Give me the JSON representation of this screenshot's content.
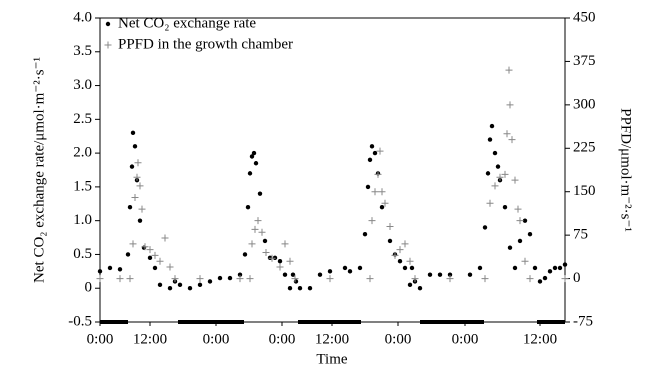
{
  "chart_data": {
    "type": "scatter",
    "xlabel": "Time",
    "ylabel": "Net CO₂ exchange rate/μmol·m⁻²·s⁻¹",
    "y2label": "PPFD/μmol·m⁻²·s⁻¹",
    "legend": "upper left",
    "xlim": [
      0,
      465
    ],
    "xticks": [
      {
        "value": 0,
        "label": "0:00"
      },
      {
        "value": 50,
        "label": "12:00"
      },
      {
        "value": 116,
        "label": "0:00"
      },
      {
        "value": 182,
        "label": "0:00"
      },
      {
        "value": 232,
        "label": "12:00"
      },
      {
        "value": 298,
        "label": "0:00"
      },
      {
        "value": 365,
        "label": "0:00"
      },
      {
        "value": 440,
        "label": "12:00"
      }
    ],
    "ylim": [
      -0.5,
      4.0
    ],
    "yticks": [
      -0.5,
      0,
      0.5,
      {
        "value": 1,
        "label": "1.0"
      },
      1.5,
      {
        "value": 2,
        "label": "2.0"
      },
      2.5,
      {
        "value": 3,
        "label": "3.0"
      },
      3.5,
      {
        "value": 4,
        "label": "4.0"
      }
    ],
    "y2lim": [
      -75,
      450
    ],
    "y2ticks": [
      -75,
      0,
      75,
      150,
      225,
      300,
      375,
      450
    ],
    "series": [
      {
        "name": "Net CO₂ exchange rate",
        "color": "#000000",
        "marker": "dot",
        "x": [
          0,
          10,
          20,
          28,
          30,
          32,
          33,
          35,
          37,
          40,
          44,
          50,
          55,
          60,
          70,
          75,
          80,
          90,
          100,
          110,
          120,
          130,
          140,
          145,
          148,
          150,
          152,
          154,
          156,
          160,
          165,
          170,
          175,
          180,
          185,
          190,
          193,
          196,
          200,
          210,
          220,
          230,
          245,
          250,
          260,
          265,
          268,
          270,
          272,
          275,
          278,
          282,
          290,
          295,
          300,
          305,
          310,
          312,
          315,
          320,
          330,
          340,
          350,
          370,
          380,
          385,
          388,
          390,
          392,
          395,
          398,
          400,
          405,
          410,
          415,
          420,
          425,
          430,
          435,
          440,
          445,
          450,
          455,
          460,
          465
        ],
        "values": [
          0.25,
          0.3,
          0.28,
          0.5,
          1.2,
          1.8,
          2.3,
          2.1,
          1.6,
          1.0,
          0.6,
          0.45,
          0.3,
          0.05,
          0.0,
          0.1,
          0.05,
          0.0,
          0.05,
          0.1,
          0.15,
          0.15,
          0.2,
          0.5,
          1.2,
          1.7,
          1.95,
          2.0,
          1.85,
          1.4,
          0.7,
          0.45,
          0.45,
          0.4,
          0.2,
          0.0,
          0.2,
          0.1,
          0.0,
          0.0,
          0.2,
          0.25,
          0.3,
          0.25,
          0.3,
          0.8,
          1.5,
          1.9,
          2.1,
          2.0,
          1.7,
          1.2,
          0.7,
          0.5,
          0.4,
          0.3,
          0.05,
          0.3,
          0.1,
          0.0,
          0.2,
          0.2,
          0.2,
          0.2,
          0.3,
          0.9,
          1.7,
          2.2,
          2.4,
          2.0,
          1.8,
          1.6,
          1.2,
          0.6,
          0.3,
          0.7,
          1.0,
          0.8,
          0.3,
          0.1,
          0.15,
          0.25,
          0.3,
          0.3,
          0.35
        ]
      },
      {
        "name": "PPFD in the growth chamber",
        "color": "#888888",
        "marker": "plus",
        "axis": "y2",
        "x": [
          0,
          20,
          30,
          33,
          35,
          37,
          38,
          40,
          42,
          45,
          50,
          55,
          60,
          65,
          70,
          75,
          100,
          140,
          150,
          152,
          155,
          158,
          162,
          166,
          172,
          180,
          185,
          190,
          195,
          230,
          270,
          272,
          275,
          278,
          280,
          282,
          285,
          290,
          295,
          300,
          305,
          310,
          315,
          350,
          385,
          390,
          395,
          400,
          405,
          407,
          409,
          410,
          412,
          415,
          418,
          420,
          425,
          430,
          465
        ],
        "values": [
          0,
          0,
          0,
          60,
          140,
          175,
          200,
          160,
          120,
          55,
          50,
          40,
          30,
          70,
          20,
          0,
          0,
          0,
          0,
          60,
          85,
          100,
          80,
          45,
          35,
          20,
          60,
          30,
          0,
          0,
          0,
          100,
          150,
          180,
          220,
          150,
          130,
          90,
          40,
          50,
          60,
          30,
          0,
          0,
          0,
          130,
          160,
          175,
          180,
          250,
          360,
          300,
          240,
          170,
          120,
          100,
          30,
          0,
          0
        ]
      }
    ]
  }
}
